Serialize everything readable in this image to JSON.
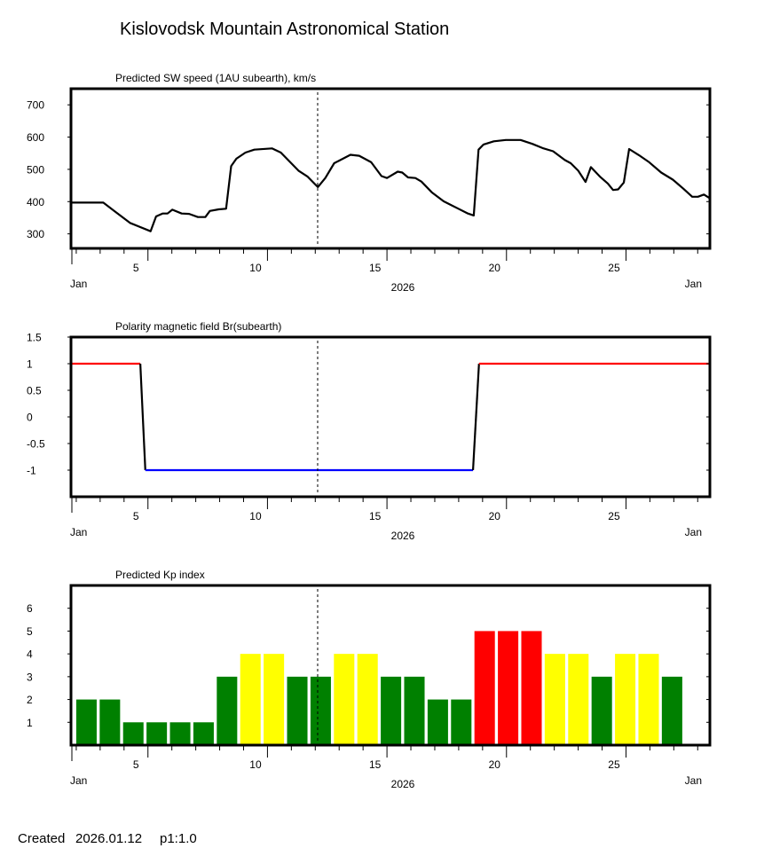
{
  "title": "Kislovodsk Mountain Astronomical Station",
  "footer": {
    "created_label": "Created",
    "date": "2026.01.12",
    "page": "p1:1.0"
  },
  "colors": {
    "kp_quiet": "#008000",
    "kp_active": "#ffff00",
    "kp_storm": "#ff0000",
    "polarity_positive": "#ff0000",
    "polarity_negative": "#0000ff",
    "line": "#000000"
  },
  "chart_data": [
    {
      "type": "line",
      "title": "Predicted SW speed (1AU subearth), km/s",
      "xlim": [
        2.78,
        29.51
      ],
      "ylim": [
        255,
        750
      ],
      "yticks": [
        700,
        600,
        500,
        400,
        300
      ],
      "ytick_labels": [
        "700",
        "600",
        "500",
        "400",
        "300"
      ],
      "xtick_values": [
        5,
        10,
        15,
        20,
        25
      ],
      "xtick_labels": [
        "5",
        "10",
        "15",
        "20",
        "25"
      ],
      "x_label_left": "Jan",
      "x_label_center": "2026",
      "x_label_right": "Jan",
      "current_day": 13.1,
      "series": [
        {
          "name": "SW speed",
          "x": [
            2.78,
            4.13,
            5.25,
            6.11,
            6.34,
            6.61,
            6.82,
            7.02,
            7.41,
            7.72,
            8.09,
            8.4,
            8.59,
            8.96,
            9.27,
            9.48,
            9.7,
            10.08,
            10.45,
            11.19,
            11.56,
            12.3,
            12.67,
            13.11,
            13.42,
            13.79,
            14.47,
            14.84,
            15.34,
            15.77,
            16.0,
            16.45,
            16.64,
            16.88,
            17.19,
            17.44,
            17.87,
            18.37,
            18.99,
            19.36,
            19.63,
            19.83,
            20.04,
            20.47,
            20.97,
            21.59,
            22.08,
            22.51,
            22.95,
            23.44,
            23.69,
            24.0,
            24.31,
            24.53,
            24.93,
            25.24,
            25.46,
            25.67,
            25.91,
            26.13,
            26.54,
            26.97,
            27.47,
            27.96,
            28.39,
            28.77,
            29.01,
            29.26,
            29.51
          ],
          "y": [
            397,
            397,
            334,
            308,
            354,
            363,
            363,
            375,
            363,
            362,
            352,
            352,
            371,
            376,
            378,
            510,
            533,
            552,
            561,
            565,
            552,
            496,
            478,
            445,
            473,
            519,
            545,
            542,
            522,
            479,
            473,
            493,
            490,
            475,
            473,
            462,
            429,
            401,
            378,
            364,
            357,
            561,
            577,
            587,
            591,
            591,
            579,
            566,
            556,
            529,
            519,
            496,
            461,
            507,
            476,
            456,
            436,
            438,
            459,
            563,
            544,
            522,
            490,
            468,
            441,
            415,
            415,
            422,
            410
          ]
        }
      ]
    },
    {
      "type": "line",
      "title": "Polarity magnetic field  Br(subearth)",
      "xlim": [
        2.78,
        29.51
      ],
      "ylim": [
        -1.5,
        1.5
      ],
      "yticks": [
        1.5,
        1,
        0.5,
        0,
        -0.5,
        -1
      ],
      "ytick_labels": [
        "1.5",
        "1",
        "0.5",
        "0",
        "-0.5",
        "-1"
      ],
      "xtick_values": [
        5,
        10,
        15,
        20,
        25
      ],
      "xtick_labels": [
        "5",
        "10",
        "15",
        "20",
        "25"
      ],
      "x_label_left": "Jan",
      "x_label_center": "2026",
      "x_label_right": "Jan",
      "current_day": 13.1,
      "series": [
        {
          "name": "Br polarity",
          "x": [
            2.78,
            5.68,
            5.89,
            19.6,
            19.85,
            29.51
          ],
          "y": [
            1,
            1,
            -1,
            -1,
            1,
            1
          ]
        }
      ]
    },
    {
      "type": "bar",
      "title": "Predicted Kp index",
      "xlim": [
        2.78,
        29.51
      ],
      "ylim": [
        0,
        7
      ],
      "yticks": [
        6,
        5,
        4,
        3,
        2,
        1
      ],
      "ytick_labels": [
        "6",
        "5",
        "4",
        "3",
        "2",
        "1"
      ],
      "xtick_values": [
        5,
        10,
        15,
        20,
        25
      ],
      "xtick_labels": [
        "5",
        "10",
        "15",
        "20",
        "25"
      ],
      "x_label_left": "Jan",
      "x_label_center": "2026",
      "x_label_right": "Jan",
      "current_day": 13.1,
      "x": [
        3.0,
        3.98,
        4.96,
        5.94,
        6.92,
        7.9,
        8.88,
        9.86,
        10.84,
        11.82,
        12.8,
        13.78,
        14.76,
        15.74,
        16.72,
        17.7,
        18.68,
        19.66,
        20.64,
        21.62,
        22.6,
        23.58,
        24.56,
        25.54,
        26.52,
        27.5
      ],
      "values": [
        2,
        2,
        1,
        1,
        1,
        1,
        3,
        4,
        4,
        3,
        3,
        4,
        4,
        3,
        3,
        2,
        2,
        5,
        5,
        5,
        4,
        4,
        3,
        4,
        4,
        3
      ]
    }
  ]
}
